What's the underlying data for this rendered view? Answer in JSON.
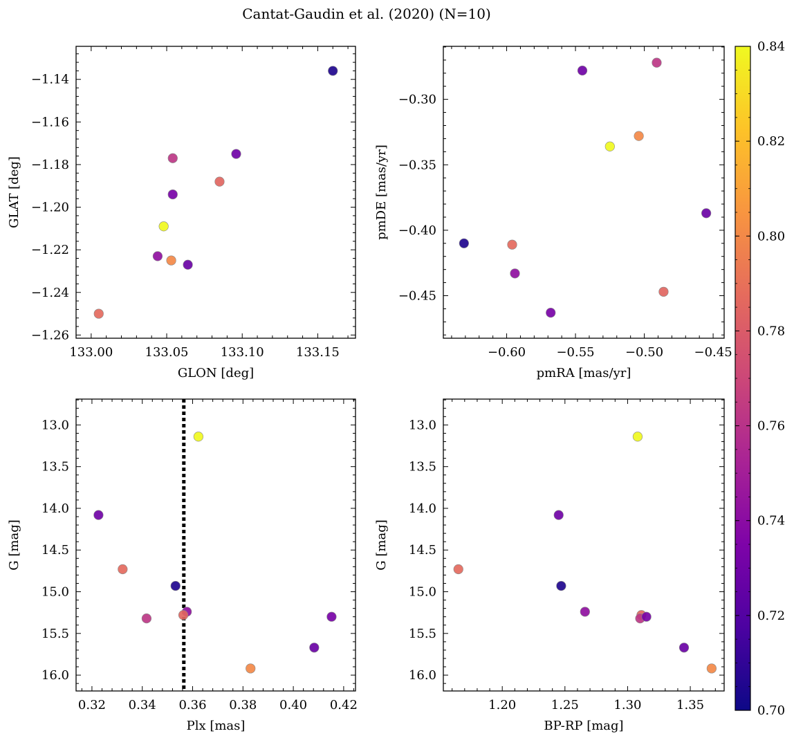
{
  "figure": {
    "title": "Cantat-Gaudin et al. (2020) (N=10)"
  },
  "colorbar": {
    "range": [
      0.7,
      0.84
    ],
    "ticks": [
      0.7,
      0.72,
      0.74,
      0.76,
      0.78,
      0.8,
      0.82,
      0.84
    ],
    "tick_labels": [
      "0.70",
      "0.72",
      "0.74",
      "0.76",
      "0.78",
      "0.80",
      "0.82",
      "0.84"
    ],
    "colormap": "plasma"
  },
  "chart_data": [
    {
      "type": "scatter",
      "xlabel": "GLON [deg]",
      "ylabel": "GLAT [deg]",
      "xlim": [
        132.99,
        133.175
      ],
      "ylim": [
        -1.2615,
        -1.1245
      ],
      "xticks": [
        133.0,
        133.05,
        133.1,
        133.15
      ],
      "xtick_labels": [
        "133.00",
        "133.05",
        "133.10",
        "133.15"
      ],
      "yticks": [
        -1.26,
        -1.24,
        -1.22,
        -1.2,
        -1.18,
        -1.16,
        -1.14
      ],
      "ytick_labels": [
        "−1.26",
        "−1.24",
        "−1.22",
        "−1.20",
        "−1.18",
        "−1.16",
        "−1.14"
      ],
      "points": [
        {
          "x": 133.16,
          "y": -1.136,
          "c": 0.705
        },
        {
          "x": 133.054,
          "y": -1.177,
          "c": 0.762
        },
        {
          "x": 133.096,
          "y": -1.175,
          "c": 0.73
        },
        {
          "x": 133.085,
          "y": -1.188,
          "c": 0.785
        },
        {
          "x": 133.054,
          "y": -1.194,
          "c": 0.733
        },
        {
          "x": 133.048,
          "y": -1.209,
          "c": 0.84
        },
        {
          "x": 133.044,
          "y": -1.223,
          "c": 0.742
        },
        {
          "x": 133.053,
          "y": -1.225,
          "c": 0.8
        },
        {
          "x": 133.064,
          "y": -1.227,
          "c": 0.728
        },
        {
          "x": 133.005,
          "y": -1.25,
          "c": 0.787
        }
      ]
    },
    {
      "type": "scatter",
      "xlabel": "pmRA [mas/yr]",
      "ylabel": "pmDE [mas/yr]",
      "xlim": [
        -0.646,
        -0.442
      ],
      "ylim": [
        -0.4825,
        -0.2595
      ],
      "xticks": [
        -0.6,
        -0.55,
        -0.5,
        -0.45
      ],
      "xtick_labels": [
        "−0.60",
        "−0.55",
        "−0.50",
        "−0.45"
      ],
      "yticks": [
        -0.45,
        -0.4,
        -0.35,
        -0.3
      ],
      "ytick_labels": [
        "−0.45",
        "−0.40",
        "−0.35",
        "−0.30"
      ],
      "points": [
        {
          "x": -0.631,
          "y": -0.41,
          "c": 0.705
        },
        {
          "x": -0.596,
          "y": -0.411,
          "c": 0.787
        },
        {
          "x": -0.594,
          "y": -0.433,
          "c": 0.742
        },
        {
          "x": -0.568,
          "y": -0.463,
          "c": 0.733
        },
        {
          "x": -0.545,
          "y": -0.278,
          "c": 0.73
        },
        {
          "x": -0.525,
          "y": -0.336,
          "c": 0.84
        },
        {
          "x": -0.504,
          "y": -0.328,
          "c": 0.8
        },
        {
          "x": -0.491,
          "y": -0.272,
          "c": 0.762
        },
        {
          "x": -0.486,
          "y": -0.447,
          "c": 0.785
        },
        {
          "x": -0.455,
          "y": -0.387,
          "c": 0.728
        }
      ]
    },
    {
      "type": "scatter",
      "xlabel": "Plx [mas]",
      "ylabel": "G [mag]",
      "xlim": [
        0.3137,
        0.4247
      ],
      "ylim": [
        16.19,
        12.69
      ],
      "xticks": [
        0.32,
        0.34,
        0.36,
        0.38,
        0.4,
        0.42
      ],
      "xtick_labels": [
        "0.32",
        "0.34",
        "0.36",
        "0.38",
        "0.40",
        "0.42"
      ],
      "yticks": [
        13.0,
        13.5,
        14.0,
        14.5,
        15.0,
        15.5,
        16.0
      ],
      "ytick_labels": [
        "13.0",
        "13.5",
        "14.0",
        "14.5",
        "15.0",
        "15.5",
        "16.0"
      ],
      "vline": {
        "x": 0.3565,
        "style": "dotted"
      },
      "points": [
        {
          "x": 0.3623,
          "y": 13.14,
          "c": 0.84
        },
        {
          "x": 0.3226,
          "y": 14.08,
          "c": 0.73
        },
        {
          "x": 0.3322,
          "y": 14.73,
          "c": 0.787
        },
        {
          "x": 0.3532,
          "y": 14.93,
          "c": 0.705
        },
        {
          "x": 0.3577,
          "y": 15.24,
          "c": 0.742
        },
        {
          "x": 0.3563,
          "y": 15.28,
          "c": 0.785
        },
        {
          "x": 0.3417,
          "y": 15.32,
          "c": 0.762
        },
        {
          "x": 0.4152,
          "y": 15.3,
          "c": 0.733
        },
        {
          "x": 0.4083,
          "y": 15.67,
          "c": 0.728
        },
        {
          "x": 0.383,
          "y": 15.92,
          "c": 0.8
        }
      ]
    },
    {
      "type": "scatter",
      "xlabel": "BP-RP [mag]",
      "ylabel": "G [mag]",
      "xlim": [
        1.153,
        1.377
      ],
      "ylim": [
        16.19,
        12.69
      ],
      "xticks": [
        1.2,
        1.25,
        1.3,
        1.35
      ],
      "xtick_labels": [
        "1.20",
        "1.25",
        "1.30",
        "1.35"
      ],
      "yticks": [
        13.0,
        13.5,
        14.0,
        14.5,
        15.0,
        15.5,
        16.0
      ],
      "ytick_labels": [
        "13.0",
        "13.5",
        "14.0",
        "14.5",
        "15.0",
        "15.5",
        "16.0"
      ],
      "points": [
        {
          "x": 1.308,
          "y": 13.14,
          "c": 0.84
        },
        {
          "x": 1.245,
          "y": 14.08,
          "c": 0.73
        },
        {
          "x": 1.165,
          "y": 14.73,
          "c": 0.787
        },
        {
          "x": 1.247,
          "y": 14.93,
          "c": 0.705
        },
        {
          "x": 1.266,
          "y": 15.24,
          "c": 0.742
        },
        {
          "x": 1.311,
          "y": 15.28,
          "c": 0.785
        },
        {
          "x": 1.31,
          "y": 15.32,
          "c": 0.762
        },
        {
          "x": 1.315,
          "y": 15.3,
          "c": 0.733
        },
        {
          "x": 1.345,
          "y": 15.67,
          "c": 0.728
        },
        {
          "x": 1.367,
          "y": 15.92,
          "c": 0.8
        }
      ]
    }
  ]
}
